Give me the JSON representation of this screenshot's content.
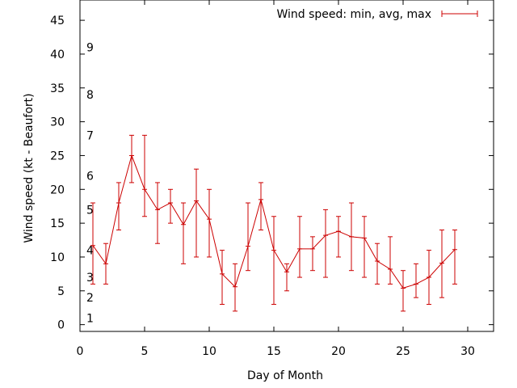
{
  "chart_data": {
    "type": "line",
    "title": "",
    "xlabel": "Day of Month",
    "ylabel": "Wind speed (kt - Beaufort)",
    "xlim": [
      0,
      32
    ],
    "ylim": [
      -1,
      48
    ],
    "xticks": [
      0,
      5,
      10,
      15,
      20,
      25,
      30
    ],
    "yticks": [
      0,
      5,
      10,
      15,
      20,
      25,
      30,
      35,
      40,
      45
    ],
    "grid": false,
    "legend_position": "top-right",
    "series_color": "#cc0000",
    "beaufort_labels": [
      {
        "label": "1",
        "value": 1
      },
      {
        "label": "2",
        "value": 4
      },
      {
        "label": "3",
        "value": 7
      },
      {
        "label": "4",
        "value": 11
      },
      {
        "label": "5",
        "value": 17
      },
      {
        "label": "6",
        "value": 22
      },
      {
        "label": "7",
        "value": 28
      },
      {
        "label": "8",
        "value": 34
      },
      {
        "label": "9",
        "value": 41
      }
    ],
    "series": [
      {
        "name": "Wind speed: min, avg, max",
        "points": [
          {
            "x": 1,
            "min": 6,
            "avg": 11.7,
            "max": 18
          },
          {
            "x": 2,
            "min": 6,
            "avg": 9.0,
            "max": 12
          },
          {
            "x": 3,
            "min": 14,
            "avg": 18.0,
            "max": 21
          },
          {
            "x": 4,
            "min": 21,
            "avg": 25.0,
            "max": 28
          },
          {
            "x": 5,
            "min": 16,
            "avg": 20.0,
            "max": 28
          },
          {
            "x": 6,
            "min": 12,
            "avg": 17.0,
            "max": 21
          },
          {
            "x": 7,
            "min": 15,
            "avg": 18.0,
            "max": 20
          },
          {
            "x": 8,
            "min": 9,
            "avg": 14.8,
            "max": 18
          },
          {
            "x": 9,
            "min": 10,
            "avg": 18.3,
            "max": 23
          },
          {
            "x": 10,
            "min": 10,
            "avg": 15.6,
            "max": 20
          },
          {
            "x": 11,
            "min": 3,
            "avg": 7.5,
            "max": 11
          },
          {
            "x": 12,
            "min": 2,
            "avg": 5.6,
            "max": 9
          },
          {
            "x": 13,
            "min": 8,
            "avg": 11.6,
            "max": 18
          },
          {
            "x": 14,
            "min": 14,
            "avg": 18.5,
            "max": 21
          },
          {
            "x": 15,
            "min": 3,
            "avg": 11.0,
            "max": 16
          },
          {
            "x": 16,
            "min": 5,
            "avg": 7.8,
            "max": 9
          },
          {
            "x": 17,
            "min": 7,
            "avg": 11.2,
            "max": 16
          },
          {
            "x": 18,
            "min": 8,
            "avg": 11.2,
            "max": 13
          },
          {
            "x": 19,
            "min": 7,
            "avg": 13.2,
            "max": 17
          },
          {
            "x": 20,
            "min": 10,
            "avg": 13.8,
            "max": 16
          },
          {
            "x": 21,
            "min": 8,
            "avg": 13.0,
            "max": 18
          },
          {
            "x": 22,
            "min": 7,
            "avg": 12.8,
            "max": 16
          },
          {
            "x": 23,
            "min": 6,
            "avg": 9.4,
            "max": 12
          },
          {
            "x": 24,
            "min": 6,
            "avg": 8.2,
            "max": 13
          },
          {
            "x": 25,
            "min": 2,
            "avg": 5.4,
            "max": 8
          },
          {
            "x": 26,
            "min": 4,
            "avg": 6.0,
            "max": 9
          },
          {
            "x": 27,
            "min": 3,
            "avg": 7.0,
            "max": 11
          },
          {
            "x": 28,
            "min": 4,
            "avg": 9.1,
            "max": 14
          },
          {
            "x": 29,
            "min": 6,
            "avg": 11.1,
            "max": 14
          }
        ]
      }
    ]
  }
}
